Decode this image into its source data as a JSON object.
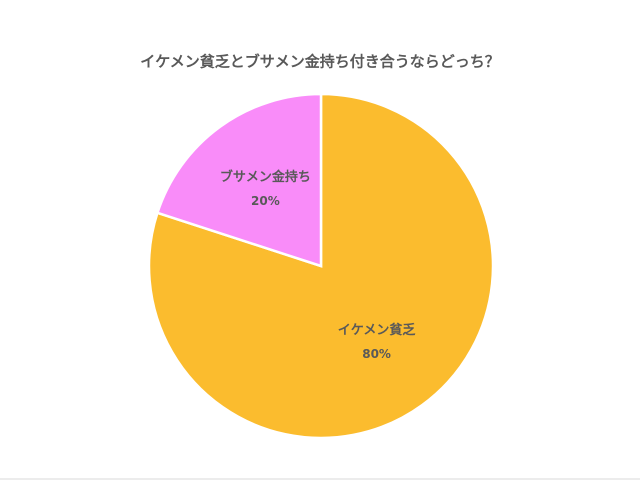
{
  "chart_data": {
    "type": "pie",
    "title": "イケメン貧乏とブサメン金持ち付き合うならどっち？",
    "categories": [
      "イケメン貧乏",
      "ブサメン金持ち"
    ],
    "values": [
      80,
      20
    ],
    "value_labels": [
      "80%",
      "20%"
    ],
    "colors": [
      "#fbbc2e",
      "#f98cf9"
    ]
  }
}
